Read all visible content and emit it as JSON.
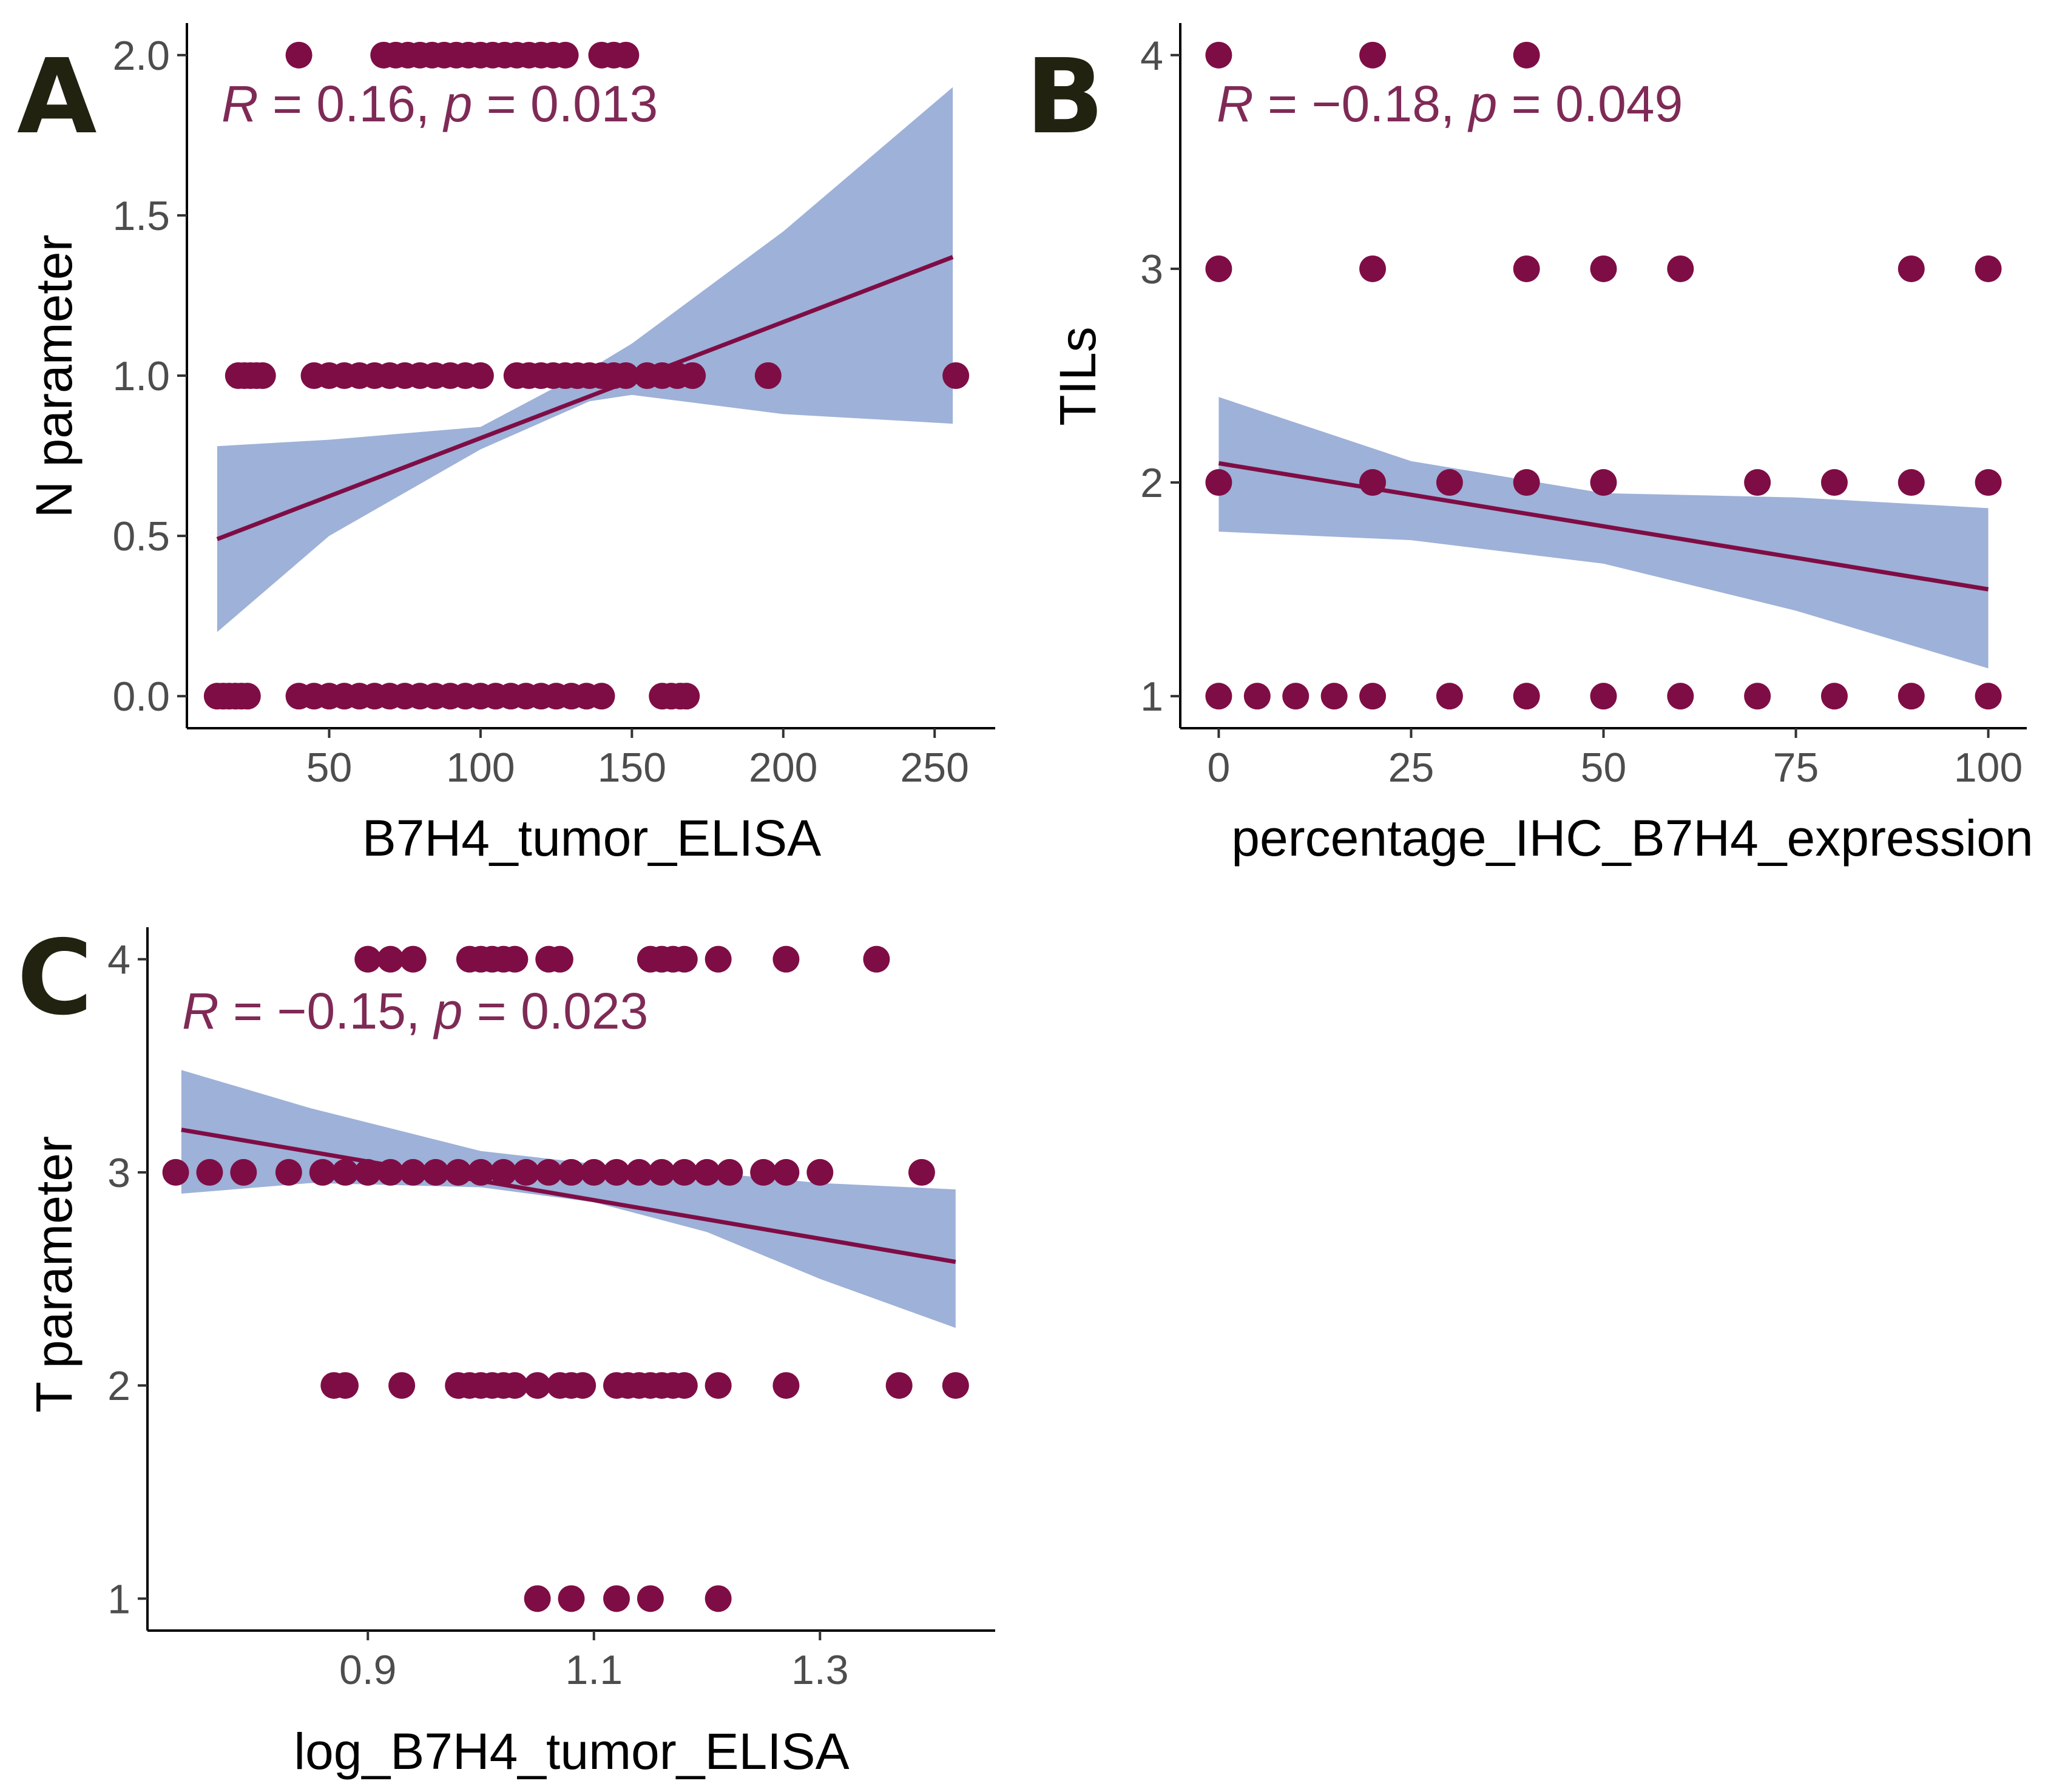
{
  "colors": {
    "point": "#7f0d45",
    "line": "#7f0d45",
    "band": "#9eb1d8",
    "stat_text": "#7f2a56"
  },
  "chart_data": [
    {
      "type": "scatter",
      "panel": "A",
      "xlabel": "B7H4_tumor_ELISA",
      "ylabel": "N parameter",
      "xlim": [
        3,
        270
      ],
      "ylim": [
        -0.1,
        2.1
      ],
      "xticks": [
        50,
        100,
        150,
        200,
        250
      ],
      "xtick_labels": [
        "50",
        "100",
        "150",
        "200",
        "250"
      ],
      "yticks": [
        0,
        0.5,
        1,
        1.5,
        2
      ],
      "ytick_labels": [
        "0.0",
        "0.5",
        "1.0",
        "1.5",
        "2.0"
      ],
      "stat": {
        "r_symbol": "R",
        "r_text": " = 0.16, ",
        "p_symbol": "p",
        "p_text": " = 0.013"
      },
      "fit": {
        "x": [
          13,
          256
        ],
        "y": [
          0.49,
          1.37
        ]
      },
      "band": {
        "x": [
          13,
          50,
          100,
          136,
          150,
          200,
          256
        ],
        "upper": [
          0.78,
          0.8,
          0.84,
          1.02,
          1.1,
          1.45,
          1.9
        ],
        "lower": [
          0.2,
          0.5,
          0.77,
          0.92,
          0.94,
          0.88,
          0.85
        ]
      },
      "points": {
        "x": [
          40,
          68,
          72,
          76,
          80,
          84,
          88,
          92,
          96,
          100,
          104,
          108,
          112,
          116,
          120,
          124,
          128,
          140,
          144,
          148,
          20,
          22,
          24,
          26,
          28,
          45,
          50,
          55,
          60,
          65,
          70,
          75,
          80,
          85,
          90,
          95,
          100,
          112,
          116,
          120,
          124,
          128,
          132,
          136,
          140,
          144,
          148,
          155,
          160,
          165,
          170,
          195,
          257,
          13,
          15,
          17,
          19,
          21,
          23,
          40,
          45,
          50,
          55,
          60,
          65,
          70,
          75,
          80,
          85,
          90,
          95,
          100,
          105,
          110,
          115,
          120,
          125,
          130,
          135,
          140,
          160,
          163,
          166,
          168
        ],
        "y": [
          2,
          2,
          2,
          2,
          2,
          2,
          2,
          2,
          2,
          2,
          2,
          2,
          2,
          2,
          2,
          2,
          2,
          2,
          2,
          2,
          1,
          1,
          1,
          1,
          1,
          1,
          1,
          1,
          1,
          1,
          1,
          1,
          1,
          1,
          1,
          1,
          1,
          1,
          1,
          1,
          1,
          1,
          1,
          1,
          1,
          1,
          1,
          1,
          1,
          1,
          1,
          1,
          1,
          0,
          0,
          0,
          0,
          0,
          0,
          0,
          0,
          0,
          0,
          0,
          0,
          0,
          0,
          0,
          0,
          0,
          0,
          0,
          0,
          0,
          0,
          0,
          0,
          0,
          0,
          0,
          0,
          0,
          0,
          0
        ]
      }
    },
    {
      "type": "scatter",
      "panel": "B",
      "xlabel": "percentage_IHC_B7H4_expression",
      "ylabel": "TILs",
      "xlim": [
        -5,
        105
      ],
      "ylim": [
        0.85,
        4.15
      ],
      "xticks": [
        0,
        25,
        50,
        75,
        100
      ],
      "xtick_labels": [
        "0",
        "25",
        "50",
        "75",
        "100"
      ],
      "yticks": [
        1,
        2,
        3,
        4
      ],
      "ytick_labels": [
        "1",
        "2",
        "3",
        "4"
      ],
      "stat": {
        "r_symbol": "R",
        "r_text": " = −0.18, ",
        "p_symbol": "p",
        "p_text": " = 0.049"
      },
      "fit": {
        "x": [
          0,
          100
        ],
        "y": [
          2.09,
          1.5
        ]
      },
      "band": {
        "x": [
          0,
          25,
          50,
          75,
          100
        ],
        "upper": [
          2.4,
          2.1,
          1.95,
          1.93,
          1.88
        ],
        "lower": [
          1.77,
          1.73,
          1.62,
          1.4,
          1.13
        ]
      },
      "points": {
        "x": [
          0,
          20,
          40,
          0,
          20,
          40,
          50,
          60,
          90,
          100,
          0,
          20,
          30,
          40,
          50,
          70,
          80,
          90,
          100,
          0,
          5,
          10,
          15,
          20,
          30,
          40,
          50,
          60,
          70,
          80,
          90,
          100
        ],
        "y": [
          4,
          4,
          4,
          3,
          3,
          3,
          3,
          3,
          3,
          3,
          2,
          2,
          2,
          2,
          2,
          2,
          2,
          2,
          2,
          1,
          1,
          1,
          1,
          1,
          1,
          1,
          1,
          1,
          1,
          1,
          1,
          1
        ]
      }
    },
    {
      "type": "scatter",
      "panel": "C",
      "xlabel": "log_B7H4_tumor_ELISA",
      "ylabel": "T parameter",
      "xlim": [
        0.705,
        1.455
      ],
      "ylim": [
        0.85,
        4.15
      ],
      "xticks": [
        0.9,
        1.1,
        1.3
      ],
      "xtick_labels": [
        "0.9",
        "1.1",
        "1.3"
      ],
      "yticks": [
        1,
        2,
        3,
        4
      ],
      "ytick_labels": [
        "1",
        "2",
        "3",
        "4"
      ],
      "stat": {
        "r_symbol": "R",
        "r_text": " = −0.15, ",
        "p_symbol": "p",
        "p_text": " = 0.023"
      },
      "fit": {
        "x": [
          0.735,
          1.42
        ],
        "y": [
          3.2,
          2.58
        ]
      },
      "band": {
        "x": [
          0.735,
          0.85,
          1.0,
          1.1,
          1.2,
          1.3,
          1.42
        ],
        "upper": [
          3.48,
          3.3,
          3.1,
          3.04,
          3.0,
          2.95,
          2.92
        ],
        "lower": [
          2.9,
          2.95,
          2.93,
          2.86,
          2.72,
          2.5,
          2.27
        ]
      },
      "points": {
        "x": [
          0.9,
          0.92,
          0.94,
          0.99,
          1.0,
          1.01,
          1.02,
          1.03,
          1.06,
          1.07,
          1.15,
          1.16,
          1.17,
          1.18,
          1.21,
          1.27,
          1.35,
          0.73,
          0.76,
          0.79,
          0.83,
          0.86,
          0.88,
          0.9,
          0.92,
          0.94,
          0.96,
          0.98,
          1.0,
          1.02,
          1.04,
          1.06,
          1.08,
          1.1,
          1.12,
          1.14,
          1.16,
          1.18,
          1.2,
          1.22,
          1.25,
          1.27,
          1.3,
          1.39,
          0.87,
          0.88,
          0.93,
          0.98,
          0.99,
          1.0,
          1.01,
          1.02,
          1.03,
          1.05,
          1.07,
          1.08,
          1.09,
          1.12,
          1.13,
          1.14,
          1.15,
          1.16,
          1.17,
          1.18,
          1.21,
          1.27,
          1.37,
          1.42,
          1.05,
          1.08,
          1.12,
          1.15,
          1.21
        ],
        "y": [
          4,
          4,
          4,
          4,
          4,
          4,
          4,
          4,
          4,
          4,
          4,
          4,
          4,
          4,
          4,
          4,
          4,
          3,
          3,
          3,
          3,
          3,
          3,
          3,
          3,
          3,
          3,
          3,
          3,
          3,
          3,
          3,
          3,
          3,
          3,
          3,
          3,
          3,
          3,
          3,
          3,
          3,
          3,
          3,
          2,
          2,
          2,
          2,
          2,
          2,
          2,
          2,
          2,
          2,
          2,
          2,
          2,
          2,
          2,
          2,
          2,
          2,
          2,
          2,
          2,
          2,
          2,
          2,
          1,
          1,
          1,
          1,
          1
        ]
      }
    }
  ]
}
